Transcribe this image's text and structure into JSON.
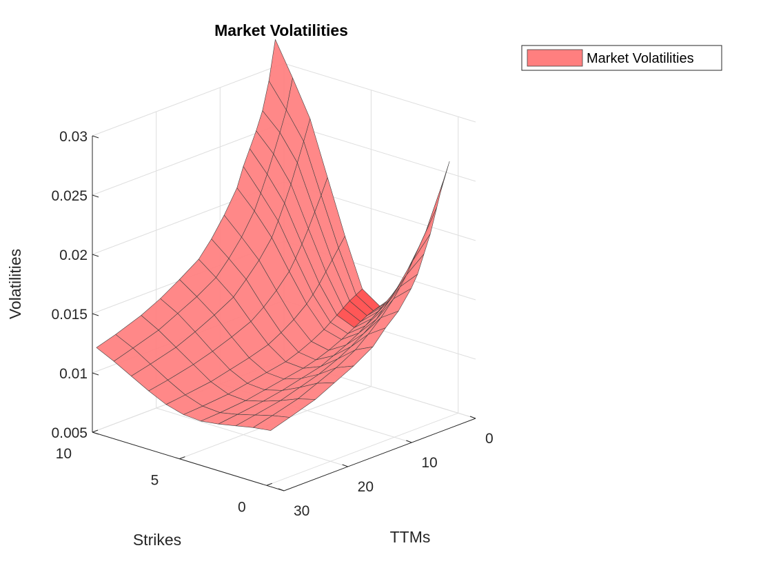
{
  "chart_data": {
    "type": "surface",
    "title": "Market Volatilities",
    "xlabel": "Strikes",
    "ylabel": "TTMs",
    "zlabel": "Volatilities",
    "x_ticks": [
      "0",
      "5",
      "10"
    ],
    "y_ticks": [
      "0",
      "10",
      "20",
      "30"
    ],
    "z_ticks": [
      "0.005",
      "0.01",
      "0.015",
      "0.02",
      "0.025",
      "0.03"
    ],
    "xlim": [
      -1,
      10
    ],
    "ylim": [
      0,
      30
    ],
    "zlim": [
      0.005,
      0.03
    ],
    "grid": true,
    "legend": {
      "position": "top-right",
      "entries": [
        "Market Volatilities"
      ]
    },
    "surface_color": "#ff7f7f",
    "edge_color": "#404040",
    "strikes": [
      0.5,
      1.5,
      2.5,
      3.5,
      4.5,
      5.5,
      6.5,
      7.5,
      8.5,
      9.5,
      10.5
    ],
    "ttms": [
      0,
      1,
      2,
      3,
      4,
      5,
      6,
      8,
      10,
      12,
      15,
      18,
      21,
      25,
      28
    ],
    "volatilities": [
      [
        0.026,
        0.0245,
        0.0225,
        0.0205,
        0.019,
        0.0175,
        0.0165,
        0.015,
        0.014,
        0.0128,
        0.0118,
        0.011,
        0.0102,
        0.0095,
        0.009
      ],
      [
        0.0205,
        0.0198,
        0.0188,
        0.0178,
        0.0168,
        0.016,
        0.0152,
        0.014,
        0.013,
        0.0121,
        0.0112,
        0.0105,
        0.0098,
        0.0092,
        0.0088
      ],
      [
        0.0165,
        0.016,
        0.0154,
        0.0148,
        0.0142,
        0.0136,
        0.013,
        0.0122,
        0.0115,
        0.0109,
        0.0102,
        0.0097,
        0.0092,
        0.0088,
        0.0085
      ],
      [
        0.0135,
        0.0132,
        0.0129,
        0.0126,
        0.0122,
        0.0118,
        0.0114,
        0.0108,
        0.0103,
        0.0098,
        0.0094,
        0.009,
        0.0087,
        0.0084,
        0.0082
      ],
      [
        0.012,
        0.0118,
        0.0116,
        0.0113,
        0.011,
        0.0107,
        0.0104,
        0.0099,
        0.0095,
        0.0092,
        0.0089,
        0.0086,
        0.0083,
        0.0081,
        0.008
      ],
      [
        0.013,
        0.0127,
        0.0124,
        0.012,
        0.0116,
        0.0112,
        0.0108,
        0.0102,
        0.0097,
        0.0093,
        0.009,
        0.0087,
        0.0084,
        0.0082,
        0.0081
      ],
      [
        0.017,
        0.0162,
        0.0154,
        0.0146,
        0.0138,
        0.0131,
        0.0125,
        0.0116,
        0.0109,
        0.0103,
        0.0098,
        0.0094,
        0.009,
        0.0087,
        0.0085
      ],
      [
        0.0215,
        0.0202,
        0.019,
        0.0178,
        0.0167,
        0.0157,
        0.0148,
        0.0136,
        0.0126,
        0.0118,
        0.0111,
        0.0105,
        0.01,
        0.0095,
        0.0092
      ],
      [
        0.026,
        0.0243,
        0.0227,
        0.0211,
        0.0197,
        0.0184,
        0.0172,
        0.0157,
        0.0145,
        0.0134,
        0.0125,
        0.0117,
        0.011,
        0.0104,
        0.01
      ],
      [
        0.029,
        0.0265,
        0.0248,
        0.0232,
        0.0217,
        0.0203,
        0.019,
        0.0172,
        0.0158,
        0.0146,
        0.0136,
        0.0128,
        0.012,
        0.0113,
        0.0108
      ],
      [
        0.0318,
        0.0285,
        0.0262,
        0.0247,
        0.0234,
        0.0221,
        0.0205,
        0.0186,
        0.017,
        0.0157,
        0.0146,
        0.0136,
        0.0128,
        0.012,
        0.0115
      ]
    ]
  }
}
